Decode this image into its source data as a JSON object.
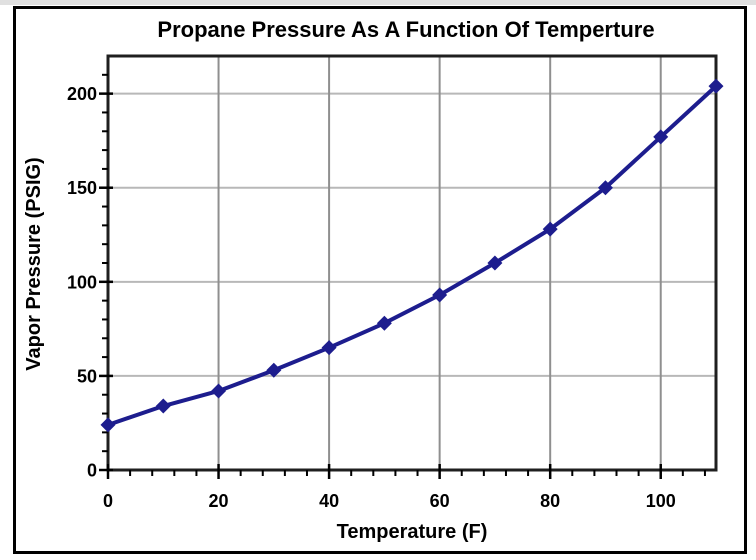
{
  "page": {
    "background_color": "#ffffff",
    "top_strip_color": "#e0e0e0",
    "outer_border_color": "#000000"
  },
  "chart_data": {
    "type": "line",
    "title": "Propane Pressure As A Function Of Temperture",
    "xlabel": "Temperature (F)",
    "ylabel": "Vapor Pressure (PSIG)",
    "x": [
      0,
      10,
      20,
      30,
      40,
      50,
      60,
      70,
      80,
      90,
      100,
      110
    ],
    "values": [
      24,
      34,
      42,
      53,
      65,
      78,
      93,
      110,
      128,
      150,
      177,
      204
    ],
    "xlim": [
      0,
      110
    ],
    "ylim": [
      0,
      220
    ],
    "x_major_ticks": [
      0,
      20,
      40,
      60,
      80,
      100
    ],
    "y_major_ticks": [
      0,
      50,
      100,
      150,
      200
    ],
    "x_minor_step": 4,
    "y_minor_step": 10,
    "grid": true,
    "legend": "none",
    "marker": "diamond",
    "colors": {
      "line": "#1d1d8e",
      "marker": "#1d1d8e",
      "gridline_vertical": "#8f8f8f",
      "gridline_horizontal": "#b8b8b8",
      "plot_frame": "#1f1f1f",
      "tick": "#000000",
      "text": "#000000"
    }
  }
}
